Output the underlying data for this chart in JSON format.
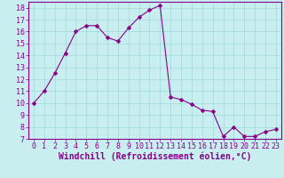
{
  "x": [
    0,
    1,
    2,
    3,
    4,
    5,
    6,
    7,
    8,
    9,
    10,
    11,
    12,
    13,
    14,
    15,
    16,
    17,
    18,
    19,
    20,
    21,
    22,
    23
  ],
  "y": [
    10.0,
    11.0,
    12.5,
    14.2,
    16.0,
    16.5,
    16.5,
    15.5,
    15.2,
    16.3,
    17.2,
    17.8,
    18.2,
    10.5,
    10.3,
    9.9,
    9.4,
    9.3,
    7.2,
    8.0,
    7.2,
    7.2,
    7.6,
    7.8
  ],
  "line_color": "#880088",
  "marker": "D",
  "marker_size": 2.5,
  "bg_color": "#c8eef0",
  "grid_color": "#a0d8dc",
  "xlabel": "Windchill (Refroidissement éolien,°C)",
  "ylabel": "",
  "xlim": [
    -0.5,
    23.5
  ],
  "ylim": [
    7,
    18.5
  ],
  "yticks": [
    7,
    8,
    9,
    10,
    11,
    12,
    13,
    14,
    15,
    16,
    17,
    18
  ],
  "xticks": [
    0,
    1,
    2,
    3,
    4,
    5,
    6,
    7,
    8,
    9,
    10,
    11,
    12,
    13,
    14,
    15,
    16,
    17,
    18,
    19,
    20,
    21,
    22,
    23
  ],
  "xlabel_fontsize": 7,
  "tick_fontsize": 6,
  "xlabel_color": "#880088",
  "tick_color": "#880088",
  "spine_color": "#880088"
}
